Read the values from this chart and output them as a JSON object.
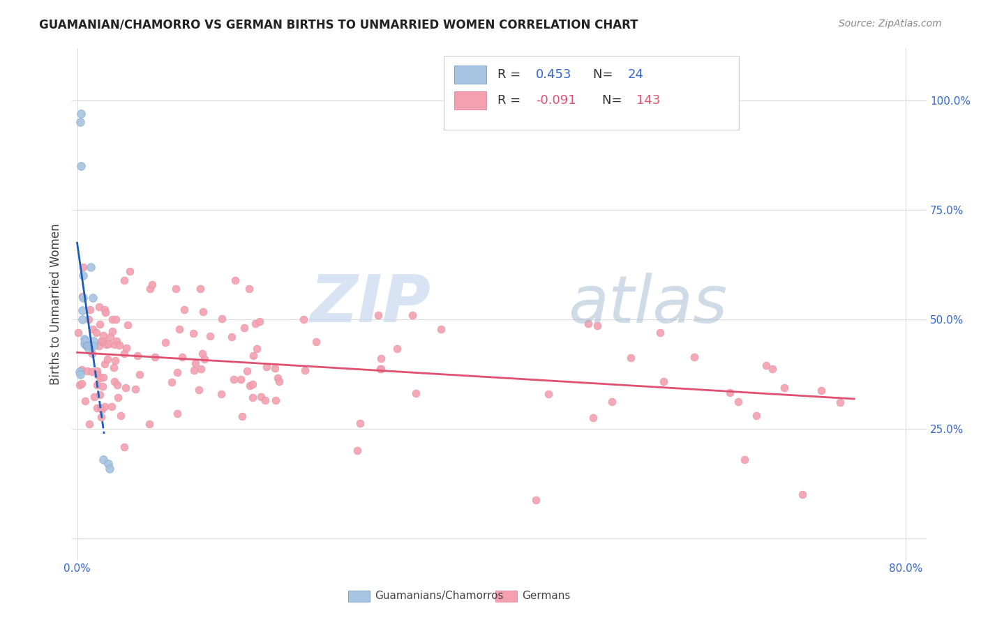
{
  "title": "GUAMANIAN/CHAMORRO VS GERMAN BIRTHS TO UNMARRIED WOMEN CORRELATION CHART",
  "source": "Source: ZipAtlas.com",
  "ylabel": "Births to Unmarried Women",
  "legend_label_blue": "Guamanians/Chamorros",
  "legend_label_pink": "Germans",
  "blue_color": "#a8c4e0",
  "pink_color": "#f4a0b0",
  "blue_line_color": "#1a5eb8",
  "pink_line_color": "#e05070",
  "blue_marker_edge": "#80a8d0",
  "pink_marker_edge": "#e090a0",
  "watermark_color": "#c8d8ee",
  "background_color": "#ffffff",
  "grid_color": "#dddddd",
  "tick_color": "#3366cc",
  "text_color": "#333333",
  "source_color": "#888888",
  "legend_R_blue_color": "#3366cc",
  "legend_R_pink_color": "#e05070",
  "blue_scatter_x": [
    0.002,
    0.003,
    0.003,
    0.004,
    0.004,
    0.005,
    0.005,
    0.006,
    0.006,
    0.007,
    0.007,
    0.008,
    0.009,
    0.01,
    0.011,
    0.012,
    0.013,
    0.014,
    0.015,
    0.016,
    0.016,
    0.025,
    0.03,
    0.031
  ],
  "blue_scatter_y": [
    0.38,
    0.375,
    0.95,
    0.97,
    0.85,
    0.52,
    0.5,
    0.6,
    0.55,
    0.455,
    0.445,
    0.45,
    0.44,
    0.44,
    0.44,
    0.43,
    0.62,
    0.44,
    0.55,
    0.45,
    0.44,
    0.18,
    0.17,
    0.16
  ],
  "xlim": [
    -0.005,
    0.82
  ],
  "ylim": [
    -0.05,
    1.12
  ],
  "xticks": [
    0.0,
    0.8
  ],
  "yticks": [
    0.0,
    0.25,
    0.5,
    0.75,
    1.0
  ],
  "xtick_labels": [
    "0.0%",
    "80.0%"
  ],
  "ytick_labels": [
    "",
    "25.0%",
    "50.0%",
    "75.0%",
    "100.0%"
  ]
}
